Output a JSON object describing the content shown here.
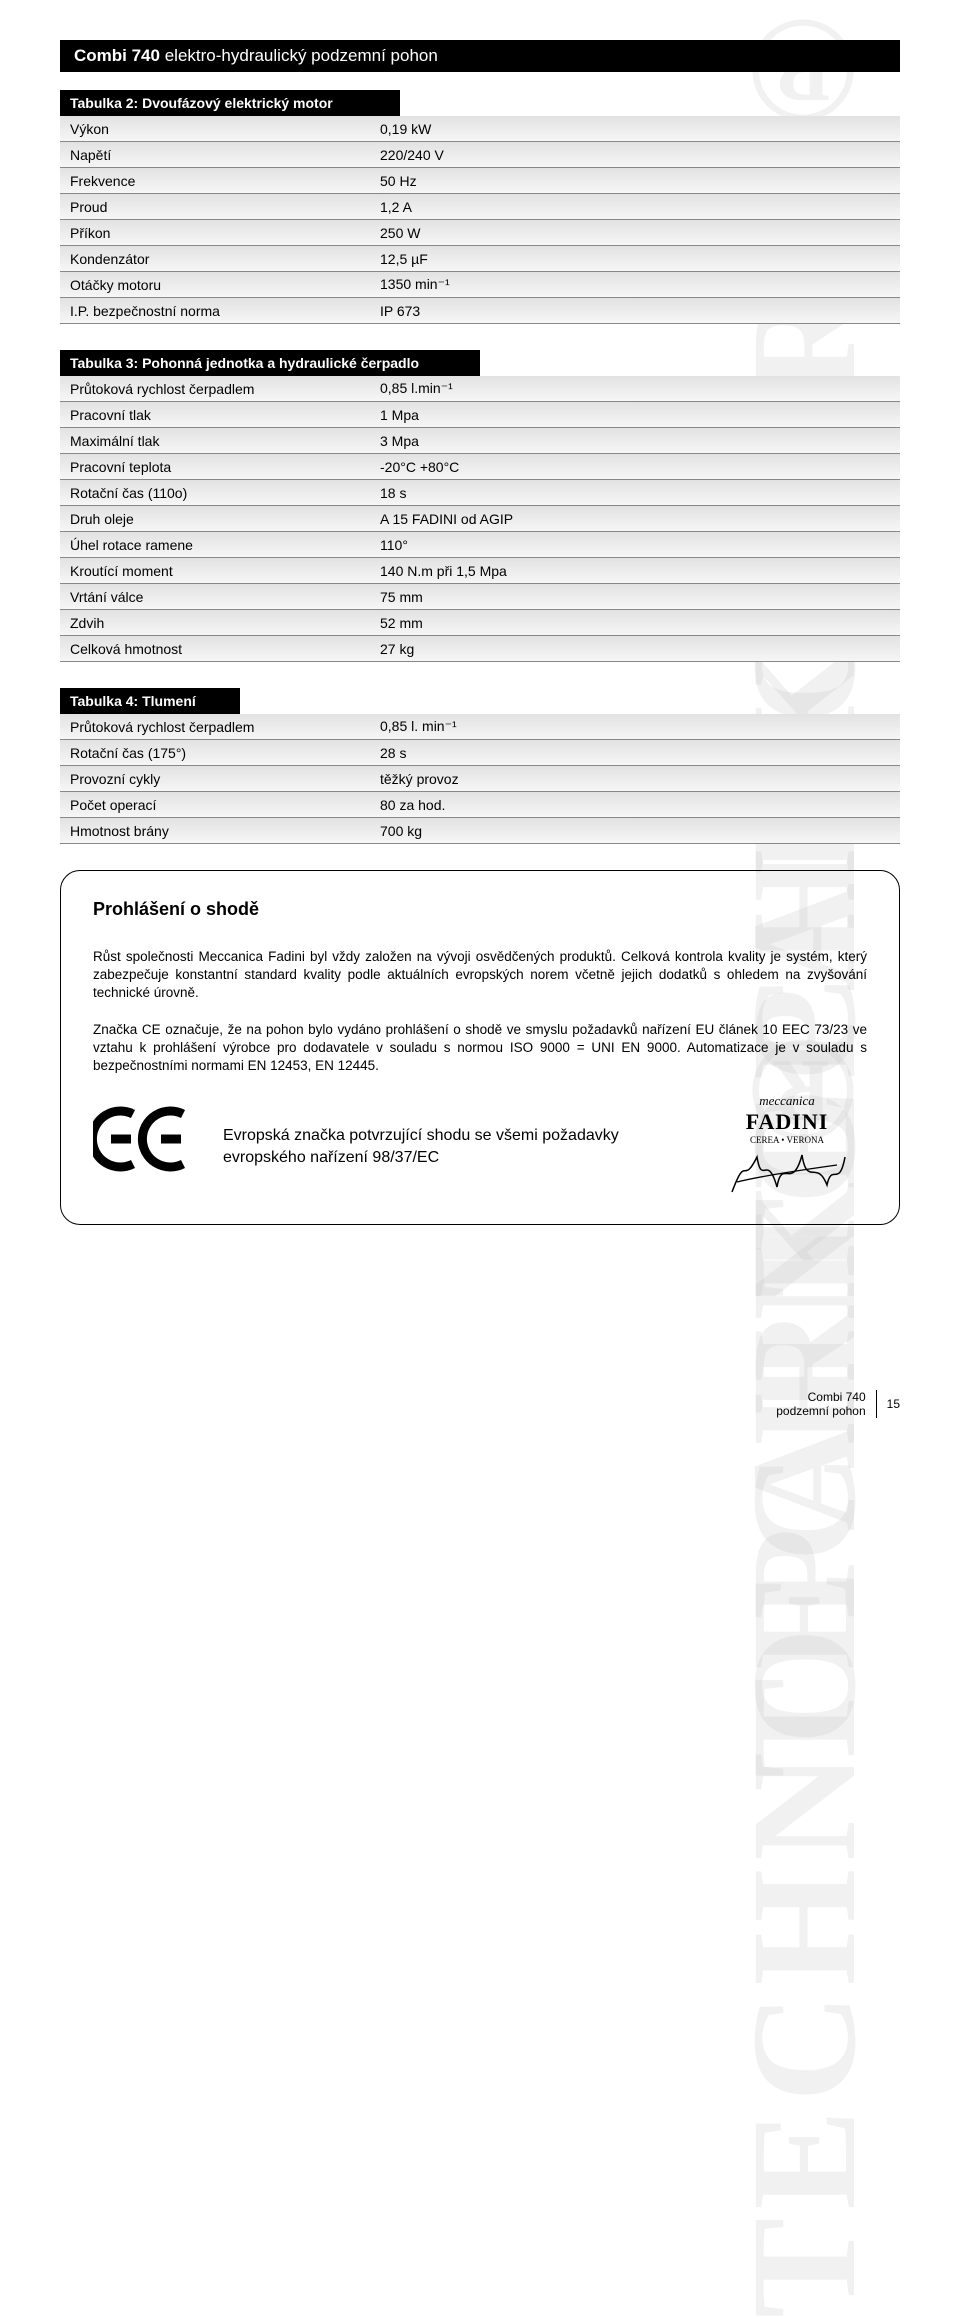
{
  "header": {
    "product": "Combi 740",
    "subtitle": "elektro-hydraulický podzemní pohon"
  },
  "watermark": "TECHNOPARK®",
  "table2": {
    "title": "Tabulka 2: Dvoufázový elektrický motor",
    "rows": [
      {
        "label": "Výkon",
        "value": "0,19 kW"
      },
      {
        "label": "Napětí",
        "value": "220/240 V"
      },
      {
        "label": "Frekvence",
        "value": "50 Hz"
      },
      {
        "label": "Proud",
        "value": "1,2 A"
      },
      {
        "label": "Příkon",
        "value": "250 W"
      },
      {
        "label": "Kondenzátor",
        "value": "12,5 µF"
      },
      {
        "label": "Otáčky motoru",
        "value": "1350 min⁻¹"
      },
      {
        "label": "I.P. bezpečnostní norma",
        "value": "IP 673"
      }
    ]
  },
  "table3": {
    "title": "Tabulka 3: Pohonná jednotka a hydraulické čerpadlo",
    "rows": [
      {
        "label": "Průtoková rychlost čerpadlem",
        "value": "0,85 l.min⁻¹"
      },
      {
        "label": "Pracovní tlak",
        "value": "1 Mpa"
      },
      {
        "label": "Maximální tlak",
        "value": "3 Mpa"
      },
      {
        "label": "Pracovní teplota",
        "value": "-20°C +80°C"
      },
      {
        "label": "Rotační čas (110o)",
        "value": "18 s"
      },
      {
        "label": "Druh oleje",
        "value": "A 15 FADINI od AGIP"
      },
      {
        "label": "Úhel rotace ramene",
        "value": "110°"
      },
      {
        "label": "Kroutící moment",
        "value": "140 N.m při 1,5 Mpa"
      },
      {
        "label": "Vrtání válce",
        "value": "75 mm"
      },
      {
        "label": "Zdvih",
        "value": "52 mm"
      },
      {
        "label": "Celková hmotnost",
        "value": "27 kg"
      }
    ]
  },
  "table4": {
    "title": "Tabulka 4: Tlumení",
    "rows": [
      {
        "label": "Průtoková rychlost čerpadlem",
        "value": "0,85 l. min⁻¹"
      },
      {
        "label": "Rotační čas (175°)",
        "value": "28 s"
      },
      {
        "label": "Provozní cykly",
        "value": "těžký provoz"
      },
      {
        "label": "Počet operací",
        "value": "80 za hod."
      },
      {
        "label": "Hmotnost brány",
        "value": "700 kg"
      }
    ]
  },
  "declaration": {
    "title": "Prohlášení o shodě",
    "para1": "Růst společnosti Meccanica Fadini byl vždy založen na vývoji osvědčených produktů. Celková kontrola kvality je systém, který zabezpečuje konstantní standard kvality podle aktuálních evropských norem včetně jejich dodatků s ohledem na zvyšování technické úrovně.",
    "para2": "Značka CE označuje, že na pohon bylo vydáno prohlášení o shodě ve smyslu požadavků nařízení EU článek 10 EEC 73/23 ve vztahu k prohlášení výrobce pro dodavatele v souladu s normou ISO 9000 = UNI EN 9000. Automatizace je v souladu s bezpečnostními normami EN 12453, EN 12445.",
    "ce_text": "Evropská značka potvrzující shodu se všemi požadavky evropského nařízení 98/37/EC",
    "signature": {
      "line1": "meccanica",
      "line2": "FADINI",
      "line3": "CEREA • VERONA"
    }
  },
  "footer": {
    "product": "Combi 740",
    "subtitle": "podzemní pohon",
    "page": "15"
  }
}
